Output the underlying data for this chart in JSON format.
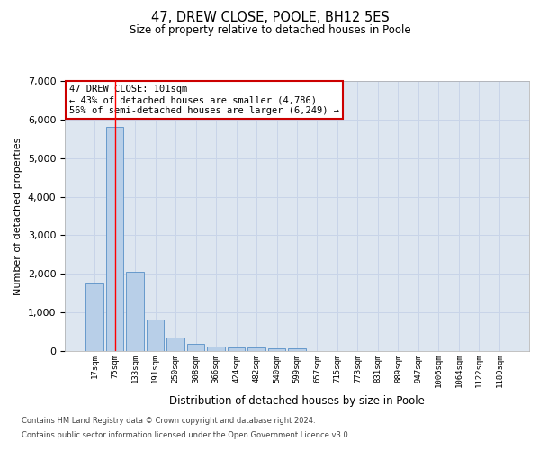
{
  "title": "47, DREW CLOSE, POOLE, BH12 5ES",
  "subtitle": "Size of property relative to detached houses in Poole",
  "xlabel": "Distribution of detached houses by size in Poole",
  "ylabel": "Number of detached properties",
  "bar_color": "#b8cfe8",
  "bar_edge_color": "#6699cc",
  "grid_color": "#c8d4e8",
  "background_color": "#dde6f0",
  "bin_labels": [
    "17sqm",
    "75sqm",
    "133sqm",
    "191sqm",
    "250sqm",
    "308sqm",
    "366sqm",
    "424sqm",
    "482sqm",
    "540sqm",
    "599sqm",
    "657sqm",
    "715sqm",
    "773sqm",
    "831sqm",
    "889sqm",
    "947sqm",
    "1006sqm",
    "1064sqm",
    "1122sqm",
    "1180sqm"
  ],
  "bar_values": [
    1780,
    5800,
    2060,
    820,
    340,
    190,
    120,
    105,
    95,
    75,
    60,
    0,
    0,
    0,
    0,
    0,
    0,
    0,
    0,
    0,
    0
  ],
  "ylim": [
    0,
    7000
  ],
  "yticks": [
    0,
    1000,
    2000,
    3000,
    4000,
    5000,
    6000,
    7000
  ],
  "red_line_x": 1,
  "annotation_text": "47 DREW CLOSE: 101sqm\n← 43% of detached houses are smaller (4,786)\n56% of semi-detached houses are larger (6,249) →",
  "annotation_box_color": "#ffffff",
  "annotation_box_edge_color": "#cc0000",
  "footer_line1": "Contains HM Land Registry data © Crown copyright and database right 2024.",
  "footer_line2": "Contains public sector information licensed under the Open Government Licence v3.0."
}
